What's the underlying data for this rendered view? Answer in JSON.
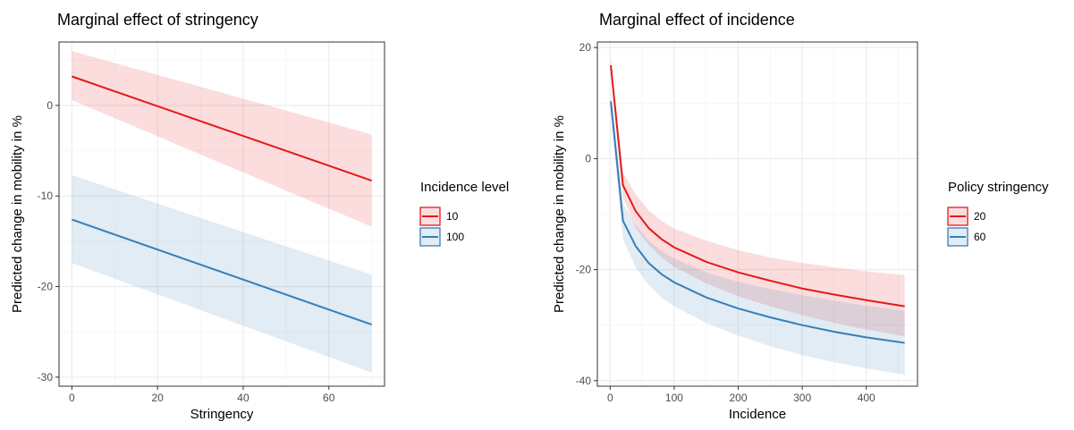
{
  "chart_data": [
    {
      "type": "line",
      "title": "Marginal effect of stringency",
      "xlabel": "Stringency",
      "ylabel": "Predicted change in mobility in %",
      "xlim": [
        -3,
        73
      ],
      "ylim": [
        -31,
        7
      ],
      "xticks": [
        0,
        20,
        40,
        60
      ],
      "yticks": [
        0,
        -10,
        -20,
        -30
      ],
      "grid": true,
      "legend": {
        "title": "Incidence level",
        "placement": "right"
      },
      "series": [
        {
          "name": "10",
          "color": "#e41a1c",
          "fill": "#fbdcdd",
          "x": [
            0,
            70
          ],
          "y": [
            3.2,
            -8.3
          ],
          "lower": [
            0.6,
            -13.4
          ],
          "upper": [
            6.0,
            -3.2
          ]
        },
        {
          "name": "100",
          "color": "#377eb8",
          "fill": "#dde8f3",
          "x": [
            0,
            70
          ],
          "y": [
            -12.6,
            -24.2
          ],
          "lower": [
            -17.4,
            -29.5
          ],
          "upper": [
            -7.7,
            -18.7
          ]
        }
      ]
    },
    {
      "type": "line",
      "title": "Marginal effect of incidence",
      "xlabel": "Incidence",
      "ylabel": "Predicted change in mobility in %",
      "xlim": [
        -20,
        480
      ],
      "ylim": [
        -41,
        21
      ],
      "xticks": [
        0,
        100,
        200,
        300,
        400
      ],
      "yticks": [
        20,
        0,
        -20,
        -40
      ],
      "grid": true,
      "legend": {
        "title": "Policy stringency",
        "placement": "right"
      },
      "series": [
        {
          "name": "20",
          "color": "#e41a1c",
          "fill": "#fbdcdd",
          "x": [
            1,
            20,
            40,
            60,
            80,
            100,
            150,
            200,
            250,
            300,
            350,
            400,
            460
          ],
          "y": [
            16.8,
            -4.8,
            -9.5,
            -12.5,
            -14.5,
            -16.0,
            -18.6,
            -20.5,
            -22.0,
            -23.4,
            -24.5,
            -25.5,
            -26.6
          ],
          "lower": [
            15.0,
            -7.0,
            -12.5,
            -15.5,
            -17.8,
            -19.5,
            -22.5,
            -24.8,
            -26.6,
            -28.2,
            -29.6,
            -30.8,
            -32.0
          ],
          "upper": [
            18.5,
            -2.5,
            -6.5,
            -9.3,
            -11.2,
            -12.6,
            -14.8,
            -16.5,
            -17.8,
            -18.8,
            -19.6,
            -20.3,
            -21.0
          ]
        },
        {
          "name": "60",
          "color": "#377eb8",
          "fill": "#dde8f3",
          "x": [
            1,
            20,
            40,
            60,
            80,
            100,
            150,
            200,
            250,
            300,
            350,
            400,
            460
          ],
          "y": [
            10.3,
            -11.2,
            -15.8,
            -18.8,
            -20.8,
            -22.3,
            -25.0,
            -27.0,
            -28.6,
            -30.0,
            -31.2,
            -32.2,
            -33.2
          ],
          "lower": [
            7.8,
            -14.5,
            -19.6,
            -22.8,
            -25.0,
            -26.6,
            -29.6,
            -31.9,
            -33.8,
            -35.4,
            -36.7,
            -37.8,
            -38.9
          ],
          "upper": [
            12.8,
            -8.0,
            -12.0,
            -14.8,
            -16.6,
            -18.0,
            -20.5,
            -22.2,
            -23.5,
            -24.6,
            -25.6,
            -26.5,
            -27.4
          ]
        }
      ]
    }
  ]
}
